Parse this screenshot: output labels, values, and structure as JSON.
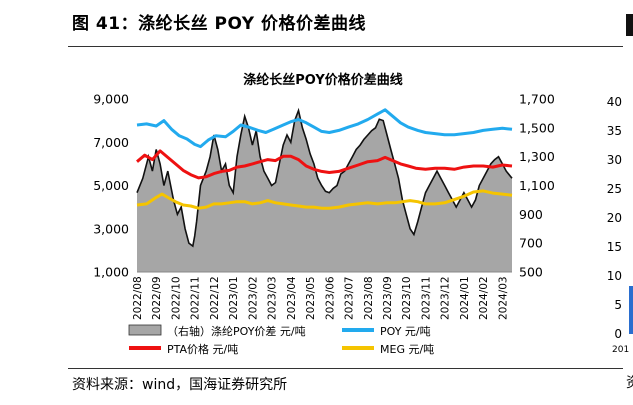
{
  "figure_title": "图 41：涤纶长丝 POY 价格价差曲线",
  "source_text": "资料来源：wind，国海证券研究所",
  "edge_fragment_text": "资料",
  "colors": {
    "spread_fill": "#a6a6a6",
    "poy": "#22aaee",
    "pta": "#ee1111",
    "meg": "#f5c400",
    "rules": "#333333"
  },
  "chart_data": {
    "type": "line",
    "title": "涤纶长丝POY价格价差曲线",
    "xlabel": "",
    "ylabel": "",
    "y_left": {
      "min": 1000,
      "max": 9000,
      "ticks": [
        "1,000",
        "3,000",
        "5,000",
        "7,000",
        "9,000"
      ]
    },
    "y_right": {
      "min": 500,
      "max": 1700,
      "ticks": [
        "500",
        "700",
        "900",
        "1,100",
        "1,300",
        "1,500",
        "1,700"
      ]
    },
    "x_ticks": [
      "2022/08",
      "2022/09",
      "2022/10",
      "2022/11",
      "2022/12",
      "2023/01",
      "2023/02",
      "2023/03",
      "2023/04",
      "2023/05",
      "2023/06",
      "2023/07",
      "2023/08",
      "2023/09",
      "2023/10",
      "2023/11",
      "2023/12",
      "2024/01",
      "2024/02",
      "2024/03"
    ],
    "legend": {
      "placement": "bottom",
      "entries": [
        {
          "key": "spread",
          "label": "（右轴）涤纶POY价差 元/吨"
        },
        {
          "key": "poy",
          "label": "POY 元/吨"
        },
        {
          "key": "pta",
          "label": "PTA价格 元/吨"
        },
        {
          "key": "meg",
          "label": "MEG 元/吨"
        }
      ]
    },
    "series": [
      {
        "key": "poy",
        "name": "POY 元/吨",
        "axis": "left",
        "kind": "line",
        "points": [
          [
            0,
            7800
          ],
          [
            0.5,
            7850
          ],
          [
            1,
            7750
          ],
          [
            1.4,
            8000
          ],
          [
            1.8,
            7600
          ],
          [
            2.2,
            7300
          ],
          [
            2.6,
            7150
          ],
          [
            3.0,
            6900
          ],
          [
            3.3,
            6800
          ],
          [
            3.7,
            7100
          ],
          [
            4.1,
            7300
          ],
          [
            4.6,
            7250
          ],
          [
            5.0,
            7500
          ],
          [
            5.4,
            7800
          ],
          [
            5.8,
            7700
          ],
          [
            6.3,
            7550
          ],
          [
            6.7,
            7450
          ],
          [
            7.1,
            7600
          ],
          [
            7.6,
            7800
          ],
          [
            8.0,
            7950
          ],
          [
            8.4,
            8050
          ],
          [
            8.8,
            7900
          ],
          [
            9.2,
            7700
          ],
          [
            9.6,
            7500
          ],
          [
            10.0,
            7450
          ],
          [
            10.5,
            7550
          ],
          [
            11.0,
            7700
          ],
          [
            11.5,
            7850
          ],
          [
            12.0,
            8050
          ],
          [
            12.5,
            8300
          ],
          [
            12.9,
            8500
          ],
          [
            13.3,
            8200
          ],
          [
            13.7,
            7900
          ],
          [
            14.1,
            7700
          ],
          [
            14.6,
            7550
          ],
          [
            15.0,
            7450
          ],
          [
            15.5,
            7400
          ],
          [
            16.0,
            7350
          ],
          [
            16.5,
            7350
          ],
          [
            17.0,
            7400
          ],
          [
            17.5,
            7450
          ],
          [
            18.0,
            7550
          ],
          [
            18.5,
            7600
          ],
          [
            19.0,
            7650
          ],
          [
            19.5,
            7600
          ]
        ]
      },
      {
        "key": "pta",
        "name": "PTA价格 元/吨",
        "axis": "left",
        "kind": "line",
        "points": [
          [
            0,
            6100
          ],
          [
            0.4,
            6400
          ],
          [
            0.8,
            6200
          ],
          [
            1.2,
            6600
          ],
          [
            1.6,
            6300
          ],
          [
            2.0,
            6000
          ],
          [
            2.4,
            5700
          ],
          [
            2.8,
            5500
          ],
          [
            3.2,
            5350
          ],
          [
            3.6,
            5400
          ],
          [
            4.0,
            5550
          ],
          [
            4.4,
            5650
          ],
          [
            4.8,
            5700
          ],
          [
            5.2,
            5850
          ],
          [
            5.6,
            5900
          ],
          [
            6.0,
            6000
          ],
          [
            6.4,
            6100
          ],
          [
            6.8,
            6200
          ],
          [
            7.2,
            6150
          ],
          [
            7.6,
            6350
          ],
          [
            8.0,
            6350
          ],
          [
            8.4,
            6200
          ],
          [
            8.8,
            5900
          ],
          [
            9.2,
            5750
          ],
          [
            9.6,
            5650
          ],
          [
            10.0,
            5600
          ],
          [
            10.5,
            5650
          ],
          [
            11.0,
            5800
          ],
          [
            11.5,
            5950
          ],
          [
            12.0,
            6100
          ],
          [
            12.5,
            6150
          ],
          [
            12.9,
            6300
          ],
          [
            13.3,
            6150
          ],
          [
            13.7,
            6000
          ],
          [
            14.1,
            5900
          ],
          [
            14.5,
            5800
          ],
          [
            15.0,
            5750
          ],
          [
            15.5,
            5800
          ],
          [
            16.0,
            5800
          ],
          [
            16.5,
            5750
          ],
          [
            17.0,
            5850
          ],
          [
            17.5,
            5900
          ],
          [
            18.0,
            5900
          ],
          [
            18.5,
            5850
          ],
          [
            19.0,
            5950
          ],
          [
            19.5,
            5900
          ]
        ]
      },
      {
        "key": "meg",
        "name": "MEG 元/吨",
        "axis": "left",
        "kind": "line",
        "points": [
          [
            0,
            4100
          ],
          [
            0.5,
            4150
          ],
          [
            1,
            4450
          ],
          [
            1.3,
            4600
          ],
          [
            1.7,
            4400
          ],
          [
            2.0,
            4250
          ],
          [
            2.4,
            4100
          ],
          [
            2.8,
            4050
          ],
          [
            3.2,
            3950
          ],
          [
            3.6,
            4000
          ],
          [
            4.0,
            4150
          ],
          [
            4.4,
            4150
          ],
          [
            4.8,
            4200
          ],
          [
            5.2,
            4250
          ],
          [
            5.6,
            4250
          ],
          [
            6.0,
            4150
          ],
          [
            6.4,
            4200
          ],
          [
            6.8,
            4300
          ],
          [
            7.2,
            4200
          ],
          [
            7.6,
            4150
          ],
          [
            8.0,
            4100
          ],
          [
            8.4,
            4050
          ],
          [
            8.8,
            4000
          ],
          [
            9.2,
            4000
          ],
          [
            9.6,
            3950
          ],
          [
            10.0,
            3950
          ],
          [
            10.5,
            4000
          ],
          [
            11.0,
            4100
          ],
          [
            11.5,
            4150
          ],
          [
            12.0,
            4200
          ],
          [
            12.5,
            4150
          ],
          [
            13.0,
            4200
          ],
          [
            13.4,
            4200
          ],
          [
            13.8,
            4250
          ],
          [
            14.2,
            4300
          ],
          [
            14.6,
            4250
          ],
          [
            15.0,
            4150
          ],
          [
            15.5,
            4150
          ],
          [
            16.0,
            4200
          ],
          [
            16.5,
            4350
          ],
          [
            17.0,
            4500
          ],
          [
            17.5,
            4700
          ],
          [
            18.0,
            4750
          ],
          [
            18.5,
            4650
          ],
          [
            19.0,
            4600
          ],
          [
            19.5,
            4550
          ]
        ]
      },
      {
        "key": "spread",
        "name": "（右轴）涤纶POY价差 元/吨",
        "axis": "right",
        "kind": "area",
        "points": [
          [
            0,
            1050
          ],
          [
            0.3,
            1150
          ],
          [
            0.6,
            1300
          ],
          [
            0.8,
            1200
          ],
          [
            1.0,
            1350
          ],
          [
            1.2,
            1250
          ],
          [
            1.4,
            1100
          ],
          [
            1.6,
            1200
          ],
          [
            1.9,
            1000
          ],
          [
            2.1,
            900
          ],
          [
            2.3,
            950
          ],
          [
            2.5,
            800
          ],
          [
            2.7,
            700
          ],
          [
            2.9,
            680
          ],
          [
            3.0,
            750
          ],
          [
            3.1,
            850
          ],
          [
            3.3,
            1100
          ],
          [
            3.6,
            1200
          ],
          [
            3.8,
            1300
          ],
          [
            4.0,
            1450
          ],
          [
            4.2,
            1350
          ],
          [
            4.4,
            1200
          ],
          [
            4.6,
            1250
          ],
          [
            4.8,
            1100
          ],
          [
            5.0,
            1050
          ],
          [
            5.2,
            1300
          ],
          [
            5.4,
            1450
          ],
          [
            5.6,
            1580
          ],
          [
            5.8,
            1500
          ],
          [
            6.0,
            1380
          ],
          [
            6.2,
            1480
          ],
          [
            6.4,
            1300
          ],
          [
            6.6,
            1200
          ],
          [
            6.8,
            1150
          ],
          [
            7.0,
            1100
          ],
          [
            7.2,
            1120
          ],
          [
            7.4,
            1250
          ],
          [
            7.6,
            1380
          ],
          [
            7.8,
            1450
          ],
          [
            8.0,
            1400
          ],
          [
            8.2,
            1550
          ],
          [
            8.4,
            1620
          ],
          [
            8.6,
            1500
          ],
          [
            8.8,
            1420
          ],
          [
            9.0,
            1320
          ],
          [
            9.2,
            1250
          ],
          [
            9.4,
            1150
          ],
          [
            9.6,
            1100
          ],
          [
            9.8,
            1060
          ],
          [
            10.0,
            1050
          ],
          [
            10.2,
            1080
          ],
          [
            10.4,
            1100
          ],
          [
            10.6,
            1180
          ],
          [
            10.8,
            1200
          ],
          [
            11.0,
            1250
          ],
          [
            11.2,
            1300
          ],
          [
            11.4,
            1350
          ],
          [
            11.6,
            1380
          ],
          [
            11.8,
            1420
          ],
          [
            12.0,
            1450
          ],
          [
            12.2,
            1480
          ],
          [
            12.4,
            1500
          ],
          [
            12.6,
            1560
          ],
          [
            12.8,
            1550
          ],
          [
            13.0,
            1450
          ],
          [
            13.2,
            1350
          ],
          [
            13.4,
            1250
          ],
          [
            13.6,
            1150
          ],
          [
            13.8,
            1000
          ],
          [
            14.0,
            900
          ],
          [
            14.2,
            800
          ],
          [
            14.4,
            760
          ],
          [
            14.6,
            850
          ],
          [
            14.8,
            950
          ],
          [
            15.0,
            1050
          ],
          [
            15.2,
            1100
          ],
          [
            15.4,
            1150
          ],
          [
            15.6,
            1200
          ],
          [
            15.8,
            1150
          ],
          [
            16.0,
            1100
          ],
          [
            16.2,
            1050
          ],
          [
            16.4,
            1000
          ],
          [
            16.6,
            950
          ],
          [
            16.8,
            1000
          ],
          [
            17.0,
            1050
          ],
          [
            17.2,
            1000
          ],
          [
            17.4,
            950
          ],
          [
            17.6,
            1000
          ],
          [
            17.8,
            1100
          ],
          [
            18.0,
            1150
          ],
          [
            18.2,
            1200
          ],
          [
            18.4,
            1250
          ],
          [
            18.6,
            1280
          ],
          [
            18.8,
            1300
          ],
          [
            19.0,
            1250
          ],
          [
            19.2,
            1200
          ],
          [
            19.5,
            1150
          ]
        ]
      }
    ]
  }
}
